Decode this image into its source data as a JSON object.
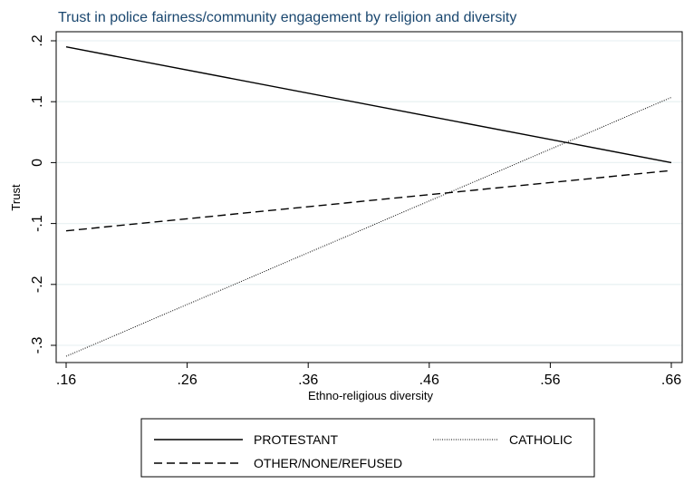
{
  "chart_data": {
    "type": "line",
    "title": "Trust in police fairness/community engagement by religion and diversity",
    "xlabel": "Ethno-religious diversity",
    "ylabel": "Trust",
    "xlim": [
      0.16,
      0.66
    ],
    "ylim": [
      -0.3,
      0.2
    ],
    "x_ticks": [
      0.16,
      0.26,
      0.36,
      0.46,
      0.56,
      0.66
    ],
    "x_tick_labels": [
      ".16",
      ".26",
      ".36",
      ".46",
      ".56",
      ".66"
    ],
    "y_ticks": [
      -0.3,
      -0.2,
      -0.1,
      0,
      0.1,
      0.2
    ],
    "y_tick_labels": [
      "-.3",
      "-.2",
      "-.1",
      "0",
      ".1",
      ".2"
    ],
    "grid": true,
    "legend_position": "bottom",
    "series": [
      {
        "name": "PROTESTANT",
        "style": "solid",
        "x": [
          0.16,
          0.66
        ],
        "y": [
          0.19,
          0.0
        ]
      },
      {
        "name": "CATHOLIC",
        "style": "dotted",
        "x": [
          0.16,
          0.66
        ],
        "y": [
          -0.318,
          0.107
        ]
      },
      {
        "name": "OTHER/NONE/REFUSED",
        "style": "dashed",
        "x": [
          0.16,
          0.66
        ],
        "y": [
          -0.112,
          -0.013
        ]
      }
    ]
  },
  "colors": {
    "title": "#1a476f",
    "line": "#000000",
    "grid": "#eaf2f3",
    "frame": "#000000"
  }
}
